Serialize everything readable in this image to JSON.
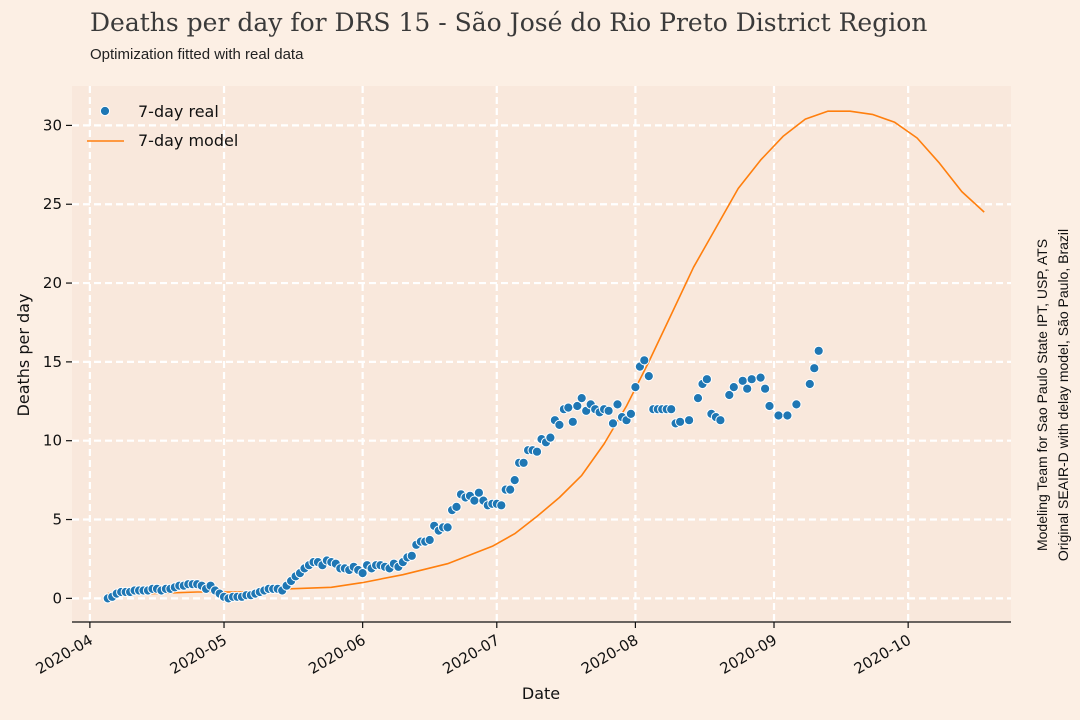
{
  "chart_data": {
    "type": "scatter",
    "title": "Deaths per day for DRS 15 - São José do Rio Preto District Region",
    "subtitle": "Optimization fitted with real data",
    "xlabel": "Date",
    "ylabel": "Deaths per day",
    "credit_line1": "Modeling Team for Sao Paulo State IPT, USP, ATS",
    "credit_line2": "Original SEAIR-D with delay model, São Paulo, Brazil",
    "x_ticks": [
      "2020-04",
      "2020-05",
      "2020-06",
      "2020-07",
      "2020-08",
      "2020-09",
      "2020-10"
    ],
    "y_ticks": [
      "0",
      "5",
      "10",
      "15",
      "20",
      "25",
      "30"
    ],
    "xlim": [
      "2020-03-28",
      "2020-10-24"
    ],
    "ylim": [
      -1.5,
      32.5
    ],
    "grid": true,
    "grid_style": "white dashed",
    "legend_position": "top-left",
    "background_color": "#fcefe4",
    "plot_background_color": "#f9e8dc",
    "series": [
      {
        "name": "7-day real",
        "kind": "scatter",
        "color": "#1f77b4",
        "points": [
          [
            "2020-04-05",
            0.0
          ],
          [
            "2020-04-06",
            0.1
          ],
          [
            "2020-04-07",
            0.3
          ],
          [
            "2020-04-08",
            0.4
          ],
          [
            "2020-04-09",
            0.4
          ],
          [
            "2020-04-10",
            0.4
          ],
          [
            "2020-04-11",
            0.5
          ],
          [
            "2020-04-12",
            0.5
          ],
          [
            "2020-04-13",
            0.5
          ],
          [
            "2020-04-14",
            0.5
          ],
          [
            "2020-04-15",
            0.6
          ],
          [
            "2020-04-16",
            0.6
          ],
          [
            "2020-04-17",
            0.5
          ],
          [
            "2020-04-18",
            0.6
          ],
          [
            "2020-04-19",
            0.6
          ],
          [
            "2020-04-20",
            0.7
          ],
          [
            "2020-04-21",
            0.8
          ],
          [
            "2020-04-22",
            0.8
          ],
          [
            "2020-04-23",
            0.9
          ],
          [
            "2020-04-24",
            0.9
          ],
          [
            "2020-04-25",
            0.9
          ],
          [
            "2020-04-26",
            0.8
          ],
          [
            "2020-04-27",
            0.6
          ],
          [
            "2020-04-28",
            0.8
          ],
          [
            "2020-04-29",
            0.5
          ],
          [
            "2020-04-30",
            0.3
          ],
          [
            "2020-05-01",
            0.1
          ],
          [
            "2020-05-02",
            0.0
          ],
          [
            "2020-05-03",
            0.1
          ],
          [
            "2020-05-04",
            0.1
          ],
          [
            "2020-05-05",
            0.1
          ],
          [
            "2020-05-06",
            0.2
          ],
          [
            "2020-05-07",
            0.2
          ],
          [
            "2020-05-08",
            0.3
          ],
          [
            "2020-05-09",
            0.4
          ],
          [
            "2020-05-10",
            0.5
          ],
          [
            "2020-05-11",
            0.6
          ],
          [
            "2020-05-12",
            0.6
          ],
          [
            "2020-05-13",
            0.6
          ],
          [
            "2020-05-14",
            0.5
          ],
          [
            "2020-05-15",
            0.8
          ],
          [
            "2020-05-16",
            1.1
          ],
          [
            "2020-05-17",
            1.4
          ],
          [
            "2020-05-18",
            1.6
          ],
          [
            "2020-05-19",
            1.9
          ],
          [
            "2020-05-20",
            2.1
          ],
          [
            "2020-05-21",
            2.3
          ],
          [
            "2020-05-22",
            2.3
          ],
          [
            "2020-05-23",
            2.1
          ],
          [
            "2020-05-24",
            2.4
          ],
          [
            "2020-05-25",
            2.3
          ],
          [
            "2020-05-26",
            2.2
          ],
          [
            "2020-05-27",
            1.9
          ],
          [
            "2020-05-28",
            1.9
          ],
          [
            "2020-05-29",
            1.8
          ],
          [
            "2020-05-30",
            2.0
          ],
          [
            "2020-05-31",
            1.8
          ],
          [
            "2020-06-01",
            1.6
          ],
          [
            "2020-06-02",
            2.1
          ],
          [
            "2020-06-03",
            1.9
          ],
          [
            "2020-06-04",
            2.1
          ],
          [
            "2020-06-05",
            2.1
          ],
          [
            "2020-06-06",
            2.0
          ],
          [
            "2020-06-07",
            1.9
          ],
          [
            "2020-06-08",
            2.2
          ],
          [
            "2020-06-09",
            2.0
          ],
          [
            "2020-06-10",
            2.3
          ],
          [
            "2020-06-11",
            2.6
          ],
          [
            "2020-06-12",
            2.7
          ],
          [
            "2020-06-13",
            3.4
          ],
          [
            "2020-06-14",
            3.6
          ],
          [
            "2020-06-15",
            3.6
          ],
          [
            "2020-06-16",
            3.7
          ],
          [
            "2020-06-17",
            4.6
          ],
          [
            "2020-06-18",
            4.3
          ],
          [
            "2020-06-19",
            4.5
          ],
          [
            "2020-06-20",
            4.5
          ],
          [
            "2020-06-21",
            5.6
          ],
          [
            "2020-06-22",
            5.8
          ],
          [
            "2020-06-23",
            6.6
          ],
          [
            "2020-06-24",
            6.4
          ],
          [
            "2020-06-25",
            6.5
          ],
          [
            "2020-06-26",
            6.2
          ],
          [
            "2020-06-27",
            6.7
          ],
          [
            "2020-06-28",
            6.2
          ],
          [
            "2020-06-29",
            5.9
          ],
          [
            "2020-06-30",
            6.0
          ],
          [
            "2020-07-01",
            6.0
          ],
          [
            "2020-07-02",
            5.9
          ],
          [
            "2020-07-03",
            6.9
          ],
          [
            "2020-07-04",
            6.9
          ],
          [
            "2020-07-05",
            7.5
          ],
          [
            "2020-07-06",
            8.6
          ],
          [
            "2020-07-07",
            8.6
          ],
          [
            "2020-07-08",
            9.4
          ],
          [
            "2020-07-09",
            9.4
          ],
          [
            "2020-07-10",
            9.3
          ],
          [
            "2020-07-11",
            10.1
          ],
          [
            "2020-07-12",
            9.9
          ],
          [
            "2020-07-13",
            10.2
          ],
          [
            "2020-07-14",
            11.3
          ],
          [
            "2020-07-15",
            11.0
          ],
          [
            "2020-07-16",
            12.0
          ],
          [
            "2020-07-17",
            12.1
          ],
          [
            "2020-07-18",
            11.2
          ],
          [
            "2020-07-19",
            12.2
          ],
          [
            "2020-07-20",
            12.7
          ],
          [
            "2020-07-21",
            11.9
          ],
          [
            "2020-07-22",
            12.3
          ],
          [
            "2020-07-23",
            12.0
          ],
          [
            "2020-07-24",
            11.8
          ],
          [
            "2020-07-25",
            12.0
          ],
          [
            "2020-07-26",
            11.9
          ],
          [
            "2020-07-27",
            11.1
          ],
          [
            "2020-07-28",
            12.3
          ],
          [
            "2020-07-29",
            11.5
          ],
          [
            "2020-07-30",
            11.3
          ],
          [
            "2020-07-31",
            11.7
          ],
          [
            "2020-08-01",
            13.4
          ],
          [
            "2020-08-02",
            14.7
          ],
          [
            "2020-08-03",
            15.1
          ],
          [
            "2020-08-04",
            14.1
          ],
          [
            "2020-08-05",
            12.0
          ],
          [
            "2020-08-06",
            12.0
          ],
          [
            "2020-08-07",
            12.0
          ],
          [
            "2020-08-08",
            12.0
          ],
          [
            "2020-08-09",
            12.0
          ],
          [
            "2020-08-10",
            11.1
          ],
          [
            "2020-08-11",
            11.2
          ],
          [
            "2020-08-13",
            11.3
          ],
          [
            "2020-08-15",
            12.7
          ],
          [
            "2020-08-16",
            13.6
          ],
          [
            "2020-08-17",
            13.9
          ],
          [
            "2020-08-18",
            11.7
          ],
          [
            "2020-08-19",
            11.5
          ],
          [
            "2020-08-20",
            11.3
          ],
          [
            "2020-08-22",
            12.9
          ],
          [
            "2020-08-23",
            13.4
          ],
          [
            "2020-08-25",
            13.8
          ],
          [
            "2020-08-26",
            13.3
          ],
          [
            "2020-08-27",
            13.9
          ],
          [
            "2020-08-29",
            14.0
          ],
          [
            "2020-08-30",
            13.3
          ],
          [
            "2020-08-31",
            12.2
          ],
          [
            "2020-09-02",
            11.6
          ],
          [
            "2020-09-04",
            11.6
          ],
          [
            "2020-09-06",
            12.3
          ],
          [
            "2020-09-09",
            13.6
          ],
          [
            "2020-09-10",
            14.6
          ],
          [
            "2020-09-11",
            15.7
          ]
        ]
      },
      {
        "name": "7-day model",
        "kind": "line",
        "color": "#ff7f0e",
        "points": [
          [
            "2020-04-05",
            0.3
          ],
          [
            "2020-04-15",
            0.3
          ],
          [
            "2020-04-25",
            0.4
          ],
          [
            "2020-05-05",
            0.4
          ],
          [
            "2020-05-15",
            0.6
          ],
          [
            "2020-05-25",
            0.7
          ],
          [
            "2020-06-01",
            1.0
          ],
          [
            "2020-06-10",
            1.5
          ],
          [
            "2020-06-20",
            2.2
          ],
          [
            "2020-06-30",
            3.3
          ],
          [
            "2020-07-05",
            4.1
          ],
          [
            "2020-07-10",
            5.2
          ],
          [
            "2020-07-15",
            6.4
          ],
          [
            "2020-07-20",
            7.8
          ],
          [
            "2020-07-25",
            9.8
          ],
          [
            "2020-07-30",
            12.2
          ],
          [
            "2020-08-04",
            15.0
          ],
          [
            "2020-08-09",
            18.0
          ],
          [
            "2020-08-14",
            21.0
          ],
          [
            "2020-08-19",
            23.5
          ],
          [
            "2020-08-24",
            26.0
          ],
          [
            "2020-08-29",
            27.8
          ],
          [
            "2020-09-03",
            29.3
          ],
          [
            "2020-09-08",
            30.4
          ],
          [
            "2020-09-13",
            30.9
          ],
          [
            "2020-09-18",
            30.9
          ],
          [
            "2020-09-23",
            30.7
          ],
          [
            "2020-09-28",
            30.2
          ],
          [
            "2020-10-03",
            29.2
          ],
          [
            "2020-10-08",
            27.6
          ],
          [
            "2020-10-13",
            25.8
          ],
          [
            "2020-10-18",
            24.5
          ]
        ]
      }
    ]
  }
}
